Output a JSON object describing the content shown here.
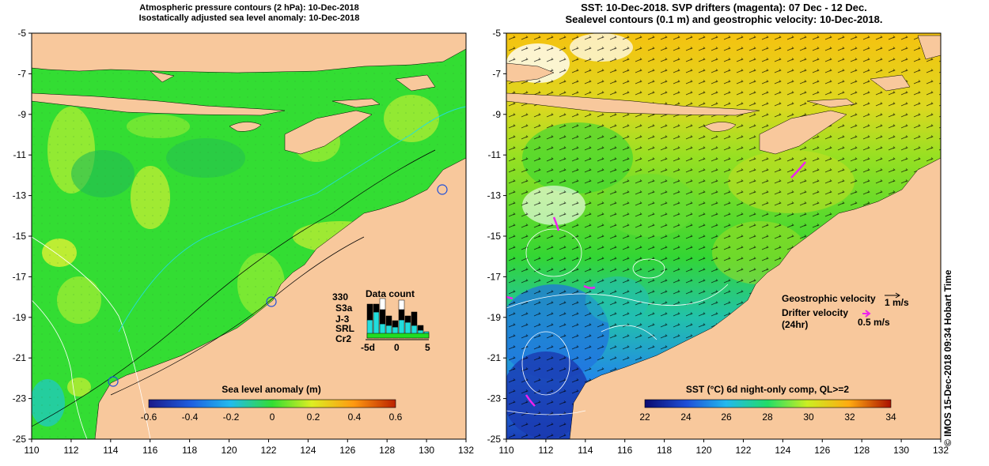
{
  "left_panel": {
    "title_line1": "Atmospheric pressure contours (2 hPa): 10-Dec-2018",
    "title_line2": "Isostatically adjusted sea level anomaly: 10-Dec-2018",
    "colorbar_label": "Sea level anomaly (m)",
    "colorbar_ticks": [
      "-0.6",
      "-0.4",
      "-0.2",
      "0",
      "0.2",
      "0.4",
      "0.6"
    ],
    "data_count": {
      "title": "Data count",
      "count": "330",
      "missions": [
        {
          "name": "S3a",
          "color": "#ffffff"
        },
        {
          "name": "J-3",
          "color": "#000000"
        },
        {
          "name": "SRL",
          "color": "#22ddee"
        },
        {
          "name": "Cr2",
          "color": "#22dd22"
        }
      ],
      "axis_ticks": [
        "-5d",
        "0",
        "5"
      ]
    }
  },
  "right_panel": {
    "title_line1": "SST: 10-Dec-2018. SVP drifters (magenta): 07 Dec - 12 Dec.",
    "title_line2": "Sealevel contours (0.1 m) and geostrophic velocity: 10-Dec-2018.",
    "colorbar_label": "SST (°C) 6d night-only comp, QL>=2",
    "colorbar_ticks": [
      "22",
      "24",
      "26",
      "28",
      "30",
      "32",
      "34"
    ],
    "legend": {
      "geostrophic_label": "Geostrophic velocity",
      "geostrophic_scale": "1 m/s",
      "drifter_label": "Drifter velocity",
      "drifter_sub": "(24hr)",
      "drifter_scale": "0.5 m/s"
    }
  },
  "axes": {
    "x_ticks": [
      "110",
      "112",
      "114",
      "116",
      "118",
      "120",
      "122",
      "124",
      "126",
      "128",
      "130",
      "132"
    ],
    "y_ticks": [
      "-5",
      "-7",
      "-9",
      "-11",
      "-13",
      "-15",
      "-17",
      "-19",
      "-21",
      "-23",
      "-25"
    ]
  },
  "side_text": "© IMOS 15-Dec-2018 09:34 Hobart Time",
  "colors": {
    "land": "#f8c89c",
    "ocean_green": "#33dd33",
    "sst_blue": "#2299ee",
    "drifter": "#ee22ee",
    "contour_cyan": "#22dddd"
  }
}
